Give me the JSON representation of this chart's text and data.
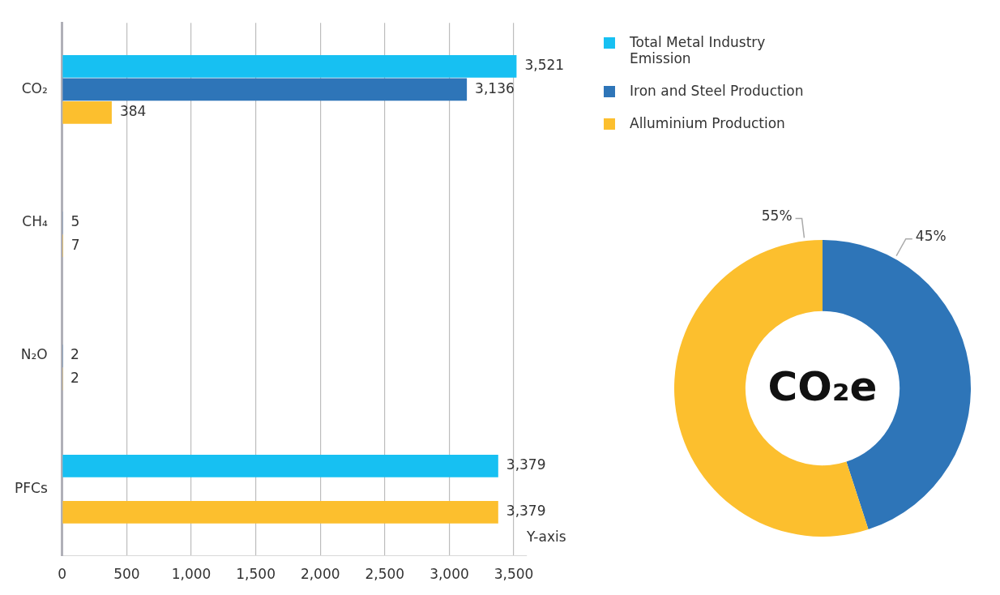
{
  "chart_data": [
    {
      "type": "bar",
      "orientation": "horizontal",
      "categories": [
        "CO₂",
        "CH₄",
        "N₂O",
        "PFCs"
      ],
      "series": [
        {
          "name": "Total Metal Industry Emission",
          "color": "#17c0f2",
          "values": [
            3521,
            null,
            null,
            3379
          ],
          "value_labels": [
            "3,521",
            null,
            null,
            "3,379"
          ]
        },
        {
          "name": "Iron and Steel Production",
          "color": "#2e75b8",
          "values": [
            3136,
            5,
            2,
            null
          ],
          "value_labels": [
            "3,136",
            "5",
            "2",
            null
          ]
        },
        {
          "name": "Alluminium Production",
          "color": "#fcbf2e",
          "values": [
            384,
            7,
            2,
            3379
          ],
          "value_labels": [
            "384",
            "7",
            "2",
            "3,379"
          ]
        }
      ],
      "xlim": [
        0,
        3600
      ],
      "xticks": [
        0,
        500,
        {
          "value": 1000,
          "label": "1,000"
        },
        {
          "value": 1500,
          "label": "1,500"
        },
        {
          "value": 2000,
          "label": "2,000"
        },
        {
          "value": 2500,
          "label": "2,500"
        },
        {
          "value": 3000,
          "label": "3,000"
        },
        {
          "value": 3500,
          "label": "3,500"
        }
      ],
      "grid": "x",
      "legend": "right",
      "annotations": [
        "Y-axis"
      ]
    },
    {
      "type": "donut",
      "categories": [
        null,
        null
      ],
      "values": [
        45,
        55
      ],
      "colors": [
        "#2e75b8",
        "#fcbf2e"
      ],
      "value_labels": [
        "45%",
        "55%"
      ],
      "annotations": [
        "CO₂e"
      ]
    }
  ]
}
